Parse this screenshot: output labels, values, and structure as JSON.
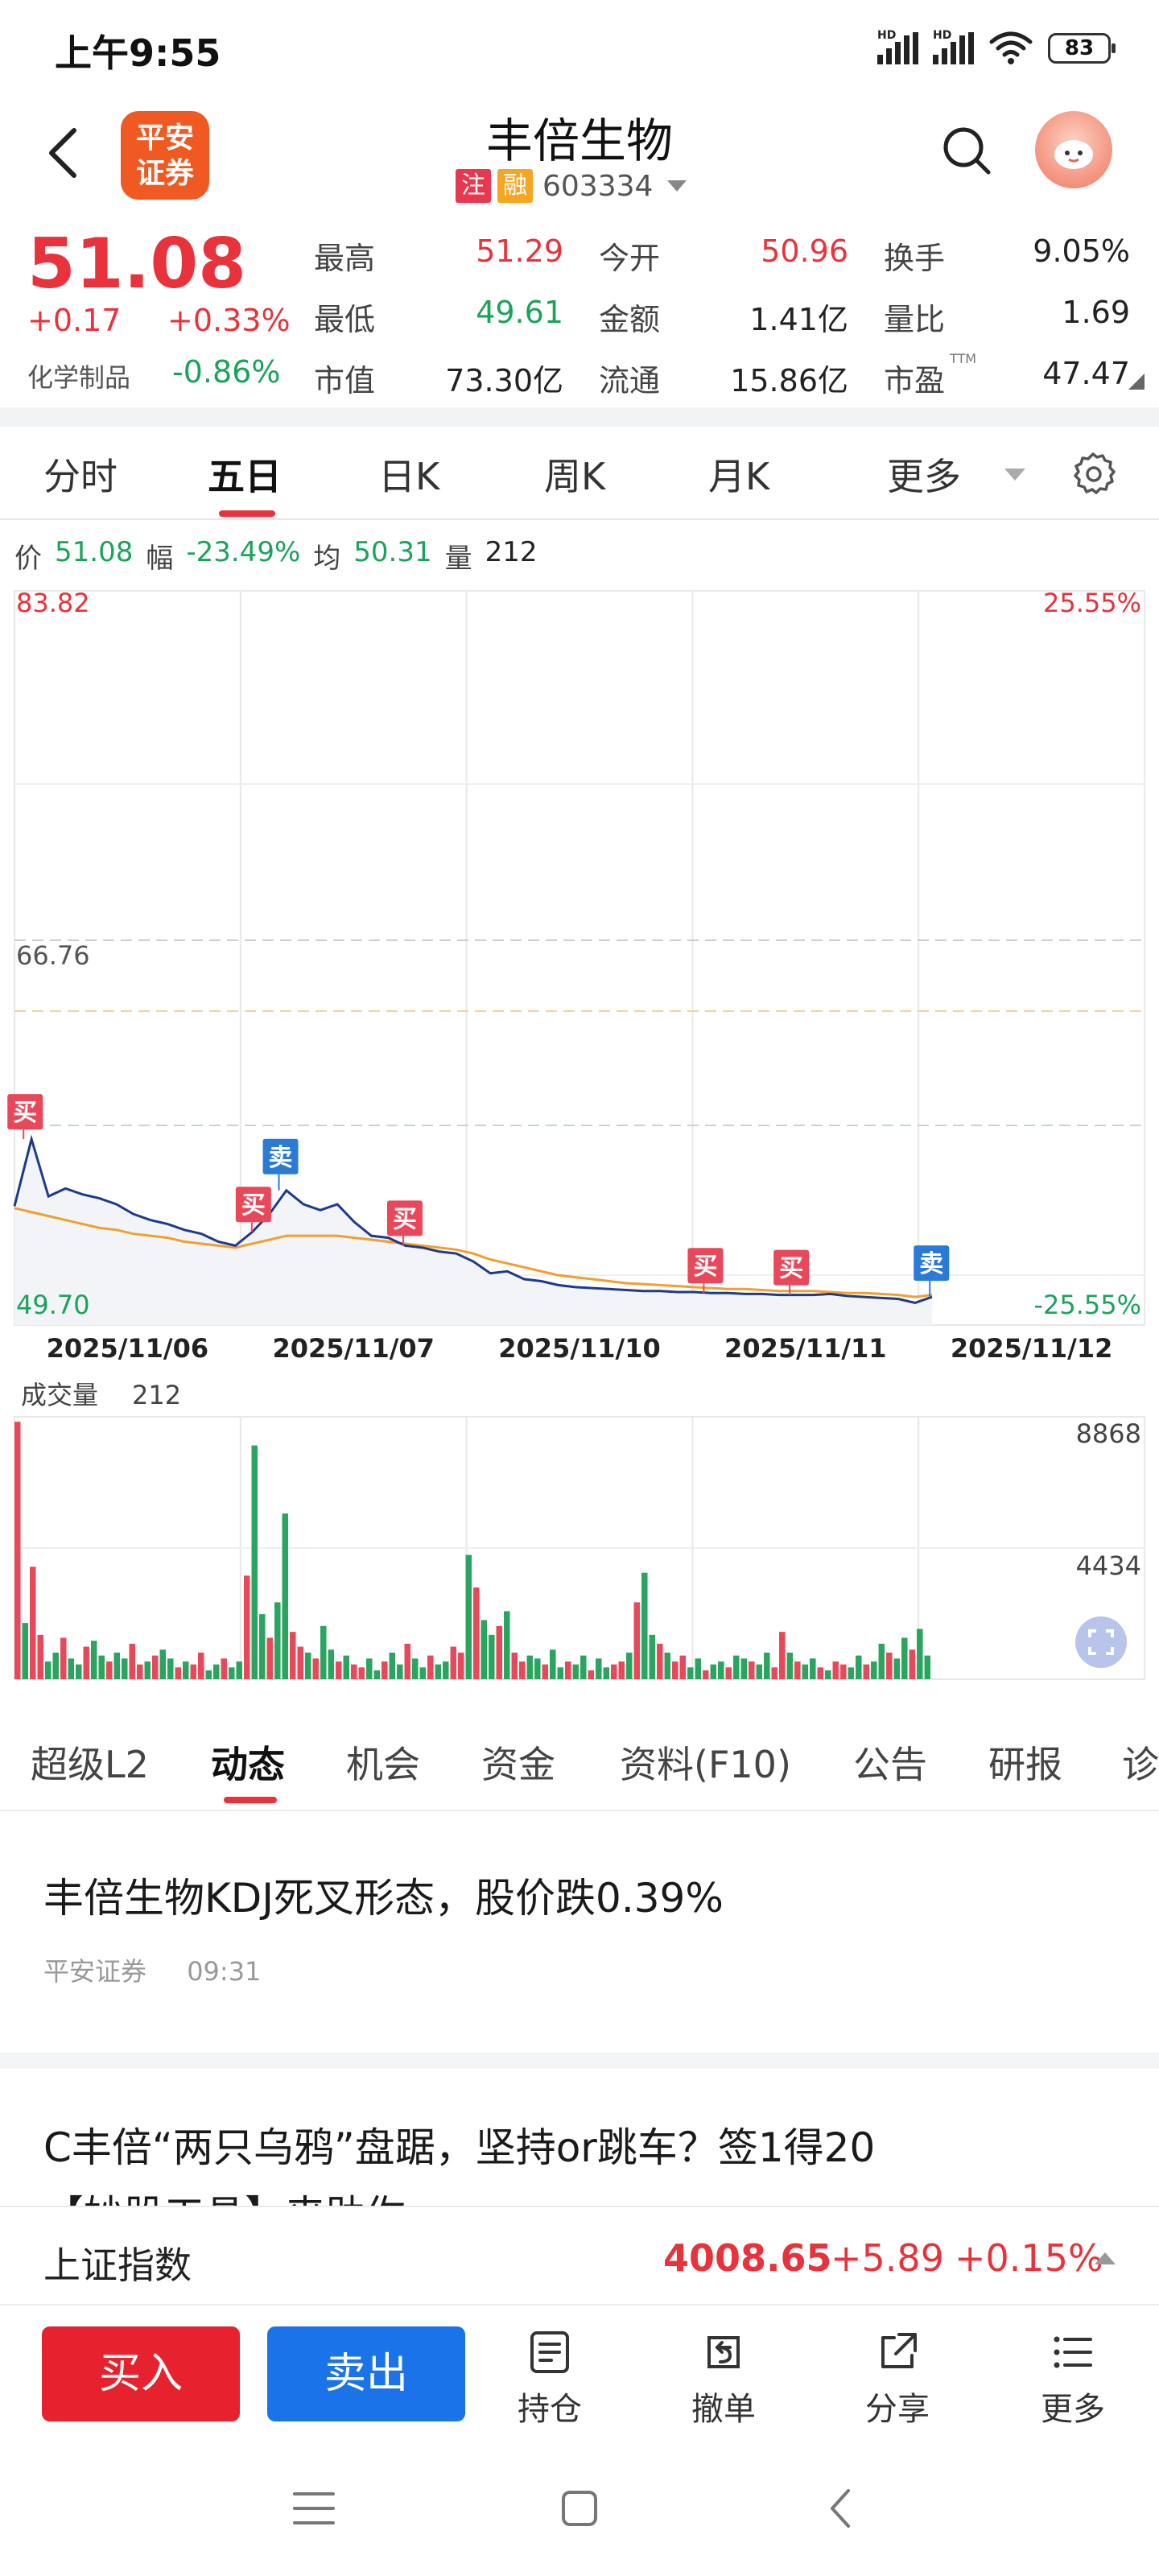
{
  "status": {
    "time": "上午9:55",
    "net1": "HD",
    "net2": "HD",
    "battery": "83"
  },
  "header": {
    "title": "丰倍生物",
    "logo_line1": "平安",
    "logo_line2": "证券",
    "tag1": "注",
    "tag2": "融",
    "code": "603334"
  },
  "quote": {
    "price": "51.08",
    "change": "+0.17",
    "change_pct": "+0.33%",
    "industry": "化学制品",
    "industry_change": "-0.86%",
    "fields": [
      {
        "label": "最高",
        "value": "51.29",
        "color": "red"
      },
      {
        "label": "今开",
        "value": "50.96",
        "color": "red"
      },
      {
        "label": "换手",
        "value": "9.05%",
        "color": "dark"
      },
      {
        "label": "最低",
        "value": "49.61",
        "color": "green"
      },
      {
        "label": "金额",
        "value": "1.41亿",
        "color": "dark"
      },
      {
        "label": "量比",
        "value": "1.69",
        "color": "dark"
      },
      {
        "label": "市值",
        "value": "73.30亿",
        "color": "dark"
      },
      {
        "label": "流通",
        "value": "15.86亿",
        "color": "dark"
      },
      {
        "label": "市盈",
        "value": "47.47",
        "color": "dark"
      }
    ],
    "ttm": "TTM"
  },
  "chart_tabs": [
    "分时",
    "五日",
    "日K",
    "周K",
    "月K",
    "更多"
  ],
  "chart_tab_active": 1,
  "chart_info": {
    "price_label": "价",
    "price": "51.08",
    "amp_label": "幅",
    "amp": "-23.49%",
    "avg_label": "均",
    "avg": "50.31",
    "vol_label": "量",
    "vol": "212"
  },
  "chart_data": {
    "type": "line",
    "y_max_label": "83.82",
    "y_mid_label": "66.76",
    "y_min_label": "49.70",
    "pct_max_label": "25.55%",
    "pct_min_label": "-25.55%",
    "x_labels": [
      "2025/11/06",
      "2025/11/07",
      "2025/11/10",
      "2025/11/11",
      "2025/11/12"
    ],
    "ylim": [
      49.7,
      83.82
    ],
    "series": [
      {
        "values": [
          54.5,
          57.9,
          55.0,
          55.4,
          55.1,
          54.9,
          54.6,
          54.1,
          53.8,
          53.6,
          53.3,
          53.1,
          52.7,
          52.5,
          53.2,
          54.1,
          55.3,
          54.6,
          54.3,
          54.6,
          53.7,
          53.0,
          52.9,
          52.5,
          52.4,
          52.2,
          52.1,
          51.7,
          51.1,
          51.2,
          50.8,
          50.7,
          50.5,
          50.4,
          50.35,
          50.3,
          50.25,
          50.2,
          50.2,
          50.15,
          50.15,
          50.1,
          50.1,
          50.05,
          50.05,
          50.0,
          50.0,
          50.0,
          50.05,
          49.95,
          49.9,
          49.85,
          49.8,
          49.6,
          49.9
        ]
      },
      {
        "values": [
          54.4,
          54.2,
          54.0,
          53.8,
          53.6,
          53.4,
          53.3,
          53.1,
          53.0,
          52.9,
          52.7,
          52.6,
          52.5,
          52.4,
          52.6,
          52.8,
          53.0,
          53.0,
          53.0,
          53.0,
          52.9,
          52.8,
          52.7,
          52.6,
          52.5,
          52.4,
          52.3,
          52.1,
          51.8,
          51.6,
          51.4,
          51.2,
          51.0,
          50.9,
          50.8,
          50.7,
          50.6,
          50.55,
          50.5,
          50.45,
          50.4,
          50.35,
          50.3,
          50.3,
          50.25,
          50.2,
          50.2,
          50.2,
          50.15,
          50.1,
          50.1,
          50.05,
          50.0,
          49.9,
          50.0
        ]
      }
    ],
    "markers": [
      {
        "label": "买",
        "day": 0,
        "t": 0.04,
        "kind": "buy"
      },
      {
        "label": "卖",
        "day": 1,
        "t": 0.17,
        "kind": "sell"
      },
      {
        "label": "买",
        "day": 1,
        "t": 0.05,
        "kind": "buy"
      },
      {
        "label": "买",
        "day": 1,
        "t": 0.72,
        "kind": "buy"
      },
      {
        "label": "买",
        "day": 3,
        "t": 0.05,
        "kind": "buy"
      },
      {
        "label": "买",
        "day": 3,
        "t": 0.43,
        "kind": "buy"
      },
      {
        "label": "卖",
        "day": 4,
        "t": 0.05,
        "kind": "sell"
      }
    ],
    "volume": {
      "label": "成交量",
      "value": "212",
      "max_label": "8868",
      "mid_label": "4434",
      "ylim": [
        0,
        8868
      ],
      "values": [
        8700,
        1900,
        3800,
        1500,
        600,
        900,
        1400,
        700,
        500,
        1100,
        1300,
        800,
        600,
        900,
        700,
        1200,
        500,
        600,
        800,
        1000,
        700,
        400,
        600,
        500,
        900,
        300,
        500,
        700,
        400,
        600,
        3500,
        7900,
        2200,
        1400,
        2600,
        5600,
        1600,
        1100,
        900,
        700,
        1800,
        1000,
        600,
        800,
        500,
        400,
        700,
        300,
        600,
        900,
        500,
        1200,
        700,
        400,
        800,
        500,
        600,
        1100,
        900,
        4200,
        3100,
        2000,
        1500,
        1800,
        2300,
        900,
        600,
        800,
        700,
        500,
        1000,
        400,
        600,
        500,
        800,
        300,
        700,
        400,
        500,
        600,
        900,
        2600,
        3600,
        1500,
        1200,
        900,
        600,
        800,
        400,
        700,
        300,
        500,
        600,
        400,
        800,
        700,
        600,
        500,
        900,
        400,
        1600,
        900,
        600,
        500,
        700,
        400,
        300,
        600,
        500,
        400,
        800,
        500,
        600,
        1200,
        900,
        700,
        1400,
        1000,
        1700,
        800
      ]
    }
  },
  "news_tabs": [
    "超级L2",
    "动态",
    "机会",
    "资金",
    "资料(F10)",
    "公告",
    "研报",
    "诊"
  ],
  "news_tab_active": 1,
  "news": [
    {
      "title": "丰倍生物KDJ死叉形态，股价跌0.39%",
      "source": "平安证券",
      "time": "09:31"
    },
    {
      "title": "C丰倍“两只乌鸦”盘踞，坚持or跳车？签1得20",
      "subtitle": "【妙股工具】来助你"
    }
  ],
  "index": {
    "name": "上证指数",
    "value": "4008.65",
    "change": "+5.89",
    "change_pct": "+0.15%"
  },
  "actions": {
    "buy": "买入",
    "sell": "卖出",
    "items": [
      "持仓",
      "撤单",
      "分享",
      "更多"
    ]
  },
  "colors": {
    "up": "#e8323c",
    "down": "#1aa35b",
    "price_line": "#1f3a8a",
    "avg_line": "#f0a030",
    "buy": "#1a73e8",
    "sell_brand": "#e5222e"
  }
}
